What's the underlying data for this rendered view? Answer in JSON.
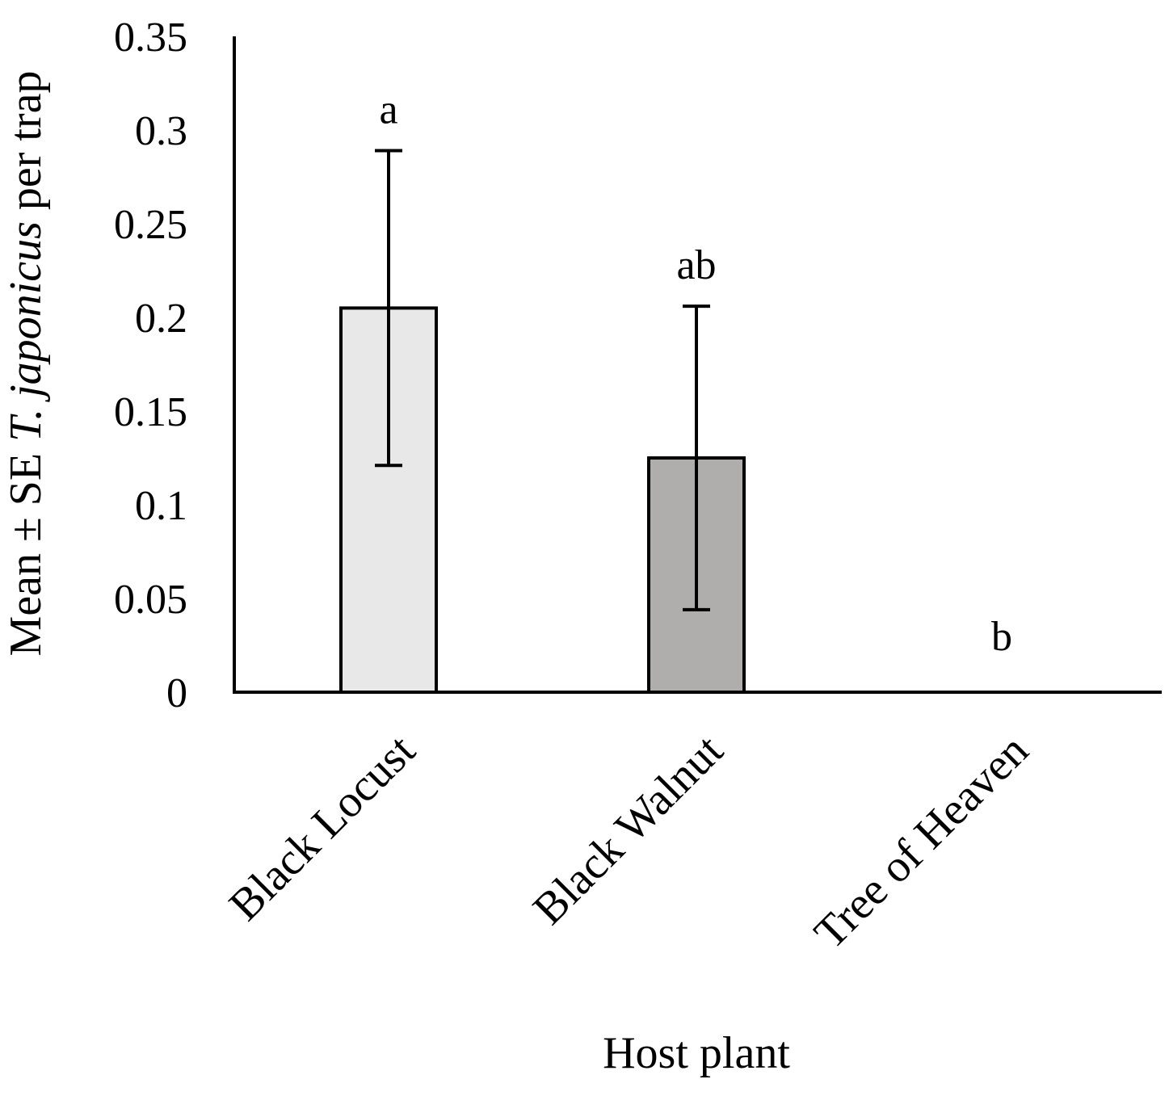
{
  "chart_data": {
    "type": "bar",
    "title": "",
    "xlabel": "Host plant",
    "ylabel_parts": [
      {
        "text": "Mean ± SE ",
        "italic": false
      },
      {
        "text": "T. japonicus",
        "italic": true
      },
      {
        "text": " per trap",
        "italic": false
      }
    ],
    "categories": [
      "Black Locust",
      "Black Walnut",
      "Tree of Heaven"
    ],
    "values": [
      0.205,
      0.125,
      0
    ],
    "errors": [
      0.084,
      0.081,
      0
    ],
    "letters": [
      "a",
      "ab",
      "b"
    ],
    "bar_colors": [
      "#e8e8e8",
      "#b0adad",
      "#ffffff"
    ],
    "ylim": [
      0,
      0.35
    ],
    "yticks": [
      "0",
      "0.05",
      "0.1",
      "0.15",
      "0.2",
      "0.25",
      "0.3",
      "0.35"
    ],
    "grid": false,
    "legend": "none"
  }
}
